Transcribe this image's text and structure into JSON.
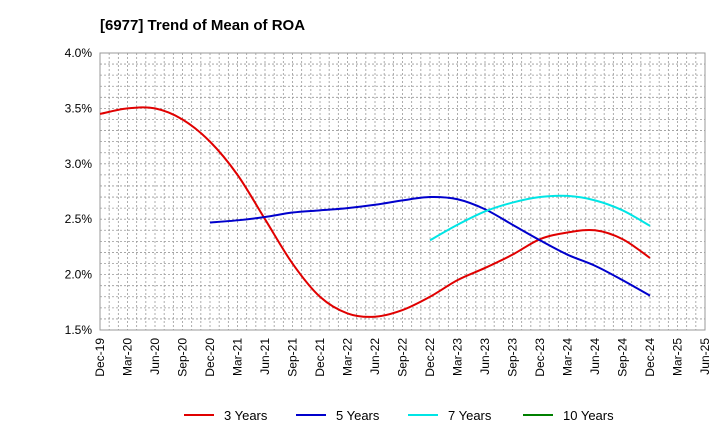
{
  "chart_data": {
    "type": "line",
    "title": "[6977]  Trend of Mean of ROA",
    "xlabel": "",
    "ylabel": "",
    "ylim": [
      1.5,
      4.0
    ],
    "yticks": [
      "4.0%",
      "3.5%",
      "3.0%",
      "2.5%",
      "2.0%",
      "1.5%"
    ],
    "ytick_values": [
      4.0,
      3.5,
      3.0,
      2.5,
      2.0,
      1.5
    ],
    "grid": true,
    "legend": "bottom",
    "x": [
      "Dec-19",
      "Mar-20",
      "Jun-20",
      "Sep-20",
      "Dec-20",
      "Mar-21",
      "Jun-21",
      "Sep-21",
      "Dec-21",
      "Mar-22",
      "Jun-22",
      "Sep-22",
      "Dec-22",
      "Mar-23",
      "Jun-23",
      "Sep-23",
      "Dec-23",
      "Mar-24",
      "Jun-24",
      "Sep-24",
      "Dec-24",
      "Mar-25",
      "Jun-25"
    ],
    "series": [
      {
        "name": "3 Years",
        "color": "#e00000",
        "values": [
          3.45,
          3.5,
          3.5,
          3.4,
          3.2,
          2.9,
          2.5,
          2.1,
          1.8,
          1.65,
          1.62,
          1.68,
          1.8,
          1.95,
          2.06,
          2.18,
          2.32,
          2.38,
          2.4,
          2.32,
          2.15,
          null,
          null
        ]
      },
      {
        "name": "5 Years",
        "color": "#0000cc",
        "values": [
          null,
          null,
          null,
          null,
          2.47,
          2.49,
          2.52,
          2.56,
          2.58,
          2.6,
          2.63,
          2.67,
          2.7,
          2.68,
          2.59,
          2.45,
          2.31,
          2.18,
          2.08,
          1.95,
          1.81,
          null,
          null
        ]
      },
      {
        "name": "7 Years",
        "color": "#00e5e5",
        "values": [
          null,
          null,
          null,
          null,
          null,
          null,
          null,
          null,
          null,
          null,
          null,
          null,
          2.31,
          2.45,
          2.57,
          2.65,
          2.7,
          2.71,
          2.67,
          2.58,
          2.44,
          null,
          null
        ]
      },
      {
        "name": "10 Years",
        "color": "#008000",
        "values": [
          null,
          null,
          null,
          null,
          null,
          null,
          null,
          null,
          null,
          null,
          null,
          null,
          null,
          null,
          null,
          null,
          null,
          null,
          null,
          null,
          null,
          null,
          null
        ]
      }
    ]
  }
}
